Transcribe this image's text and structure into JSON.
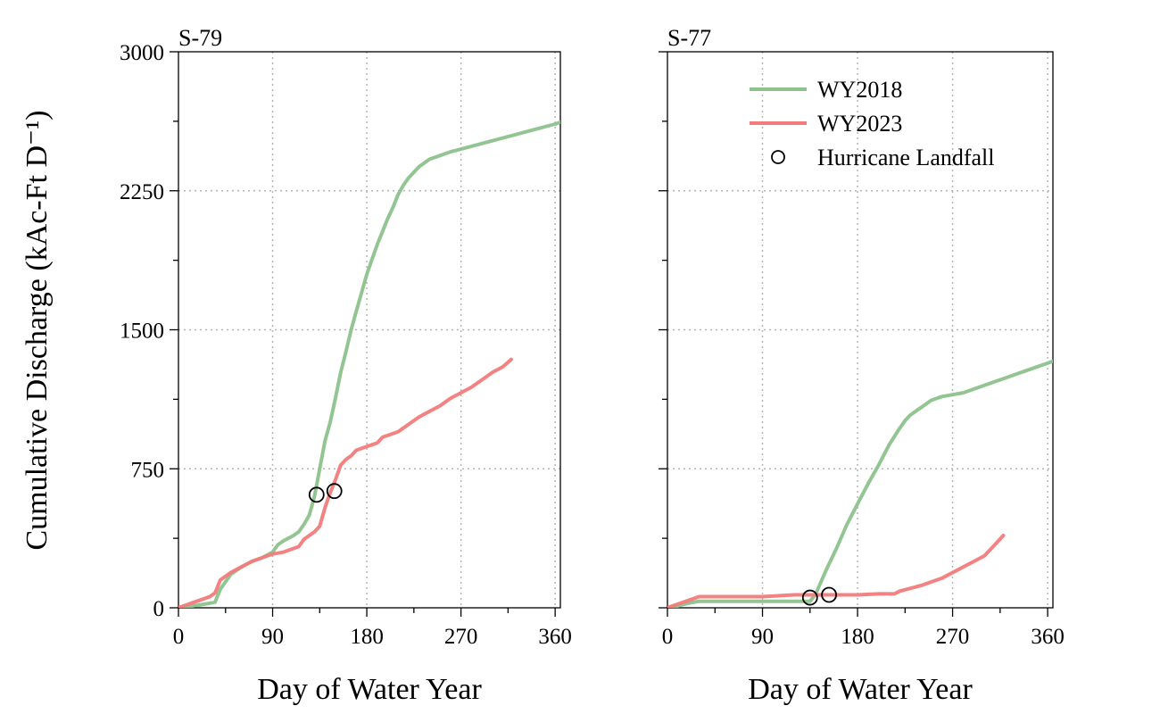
{
  "ylabel": "Cumulative Discharge (kAc-Ft D⁻¹)",
  "legend": [
    {
      "label": "WY2018",
      "color": "#8dc28d",
      "type": "line"
    },
    {
      "label": "WY2023",
      "color": "#f27b7b",
      "type": "line"
    },
    {
      "label": "Hurricane Landfall",
      "color": "#000000",
      "type": "circle"
    }
  ],
  "chart_data": [
    {
      "type": "line",
      "title": "S-79",
      "xlabel": "Day of Water Year",
      "xlim": [
        0,
        365
      ],
      "ylim": [
        0,
        3000
      ],
      "xticks": [
        0,
        90,
        180,
        270,
        360
      ],
      "yticks": [
        0,
        750,
        1500,
        2250,
        3000
      ],
      "ytick_labels": [
        "0",
        "750",
        "1500",
        "2250",
        "3000"
      ],
      "series": [
        {
          "name": "WY2018",
          "color": "#8dc28d",
          "x": [
            0,
            20,
            35,
            40,
            50,
            60,
            70,
            80,
            90,
            95,
            100,
            110,
            115,
            120,
            125,
            130,
            135,
            140,
            145,
            150,
            155,
            160,
            165,
            170,
            175,
            180,
            185,
            190,
            195,
            200,
            205,
            210,
            215,
            220,
            225,
            230,
            240,
            245,
            250,
            260,
            280,
            300,
            320,
            340,
            360,
            365
          ],
          "y": [
            0,
            15,
            30,
            100,
            180,
            220,
            250,
            270,
            300,
            340,
            360,
            390,
            410,
            450,
            500,
            600,
            750,
            900,
            1000,
            1130,
            1270,
            1380,
            1500,
            1600,
            1700,
            1800,
            1880,
            1960,
            2030,
            2100,
            2160,
            2230,
            2280,
            2320,
            2350,
            2380,
            2420,
            2430,
            2440,
            2460,
            2490,
            2520,
            2550,
            2580,
            2610,
            2620
          ]
        },
        {
          "name": "WY2023",
          "color": "#f27b7b",
          "x": [
            0,
            10,
            20,
            30,
            35,
            40,
            50,
            60,
            70,
            80,
            90,
            100,
            110,
            115,
            120,
            125,
            130,
            135,
            140,
            145,
            150,
            155,
            160,
            165,
            170,
            175,
            180,
            185,
            190,
            195,
            200,
            205,
            210,
            220,
            230,
            240,
            250,
            260,
            270,
            280,
            290,
            300,
            310,
            318
          ],
          "y": [
            0,
            20,
            40,
            60,
            80,
            150,
            190,
            220,
            250,
            270,
            290,
            300,
            320,
            330,
            370,
            390,
            410,
            440,
            540,
            620,
            690,
            770,
            800,
            820,
            850,
            860,
            870,
            880,
            890,
            920,
            930,
            940,
            950,
            990,
            1030,
            1060,
            1090,
            1130,
            1160,
            1190,
            1230,
            1270,
            1300,
            1340
          ]
        }
      ],
      "markers": {
        "name": "Hurricane Landfall",
        "x": [
          132,
          149
        ],
        "y": [
          610,
          630
        ]
      }
    },
    {
      "type": "line",
      "title": "S-77",
      "xlabel": "Day of Water Year",
      "xlim": [
        0,
        365
      ],
      "ylim": [
        0,
        3000
      ],
      "xticks": [
        0,
        90,
        180,
        270,
        360
      ],
      "yticks": [
        0,
        750,
        1500,
        2250,
        3000
      ],
      "ytick_labels": [
        "",
        "",
        "",
        "",
        ""
      ],
      "series": [
        {
          "name": "WY2018",
          "color": "#8dc28d",
          "x": [
            0,
            10,
            20,
            30,
            60,
            90,
            120,
            135,
            140,
            150,
            160,
            170,
            180,
            190,
            200,
            210,
            220,
            225,
            230,
            240,
            250,
            260,
            270,
            280,
            290,
            300,
            310,
            320,
            330,
            340,
            350,
            360,
            365
          ],
          "y": [
            0,
            10,
            25,
            35,
            35,
            35,
            35,
            35,
            70,
            200,
            320,
            450,
            560,
            670,
            770,
            880,
            970,
            1010,
            1040,
            1080,
            1120,
            1140,
            1150,
            1160,
            1180,
            1200,
            1220,
            1240,
            1260,
            1280,
            1300,
            1320,
            1330
          ]
        },
        {
          "name": "WY2023",
          "color": "#f27b7b",
          "x": [
            0,
            10,
            20,
            30,
            60,
            90,
            105,
            120,
            150,
            180,
            200,
            215,
            220,
            240,
            260,
            280,
            290,
            300,
            310,
            318
          ],
          "y": [
            0,
            20,
            40,
            60,
            60,
            60,
            65,
            70,
            70,
            70,
            75,
            75,
            90,
            120,
            160,
            220,
            250,
            280,
            340,
            390
          ]
        }
      ],
      "markers": {
        "name": "Hurricane Landfall",
        "x": [
          135,
          153
        ],
        "y": [
          55,
          70
        ]
      }
    }
  ]
}
